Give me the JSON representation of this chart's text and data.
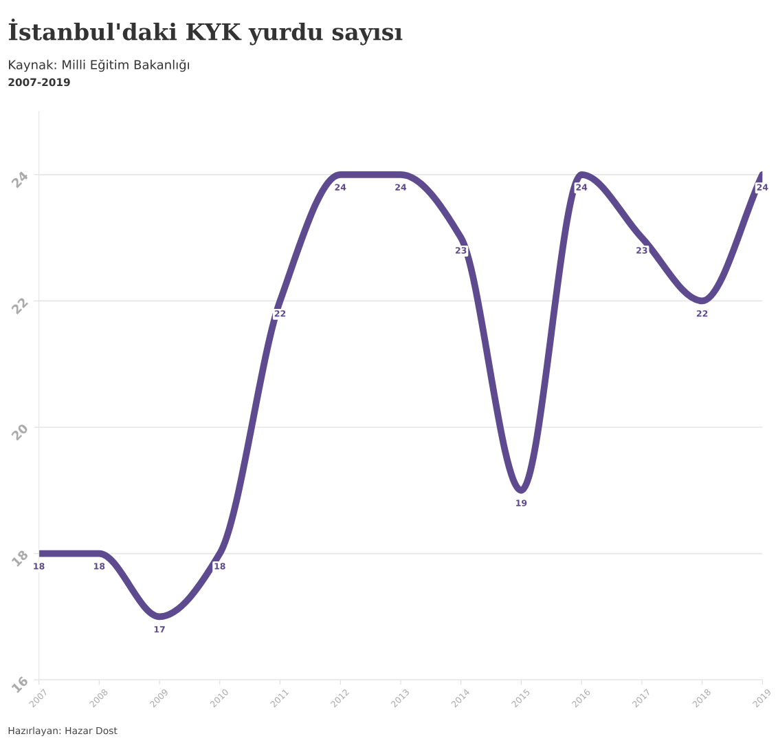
{
  "chart_data": {
    "type": "line",
    "title": "İstanbul'daki KYK yurdu sayısı",
    "subtitle": "Kaynak: Milli Eğitim Bakanlığı\n2007-2019",
    "x": [
      2007,
      2008,
      2009,
      2010,
      2011,
      2012,
      2013,
      2014,
      2015,
      2016,
      2017,
      2018,
      2019
    ],
    "series": [
      {
        "color": "#5e4b8f",
        "values": [
          18,
          18,
          17,
          18,
          22,
          24,
          24,
          23,
          19,
          24,
          23,
          22,
          24
        ]
      }
    ],
    "xlim": [
      2007,
      2019
    ],
    "xticks": [
      2007,
      2008,
      2009,
      2010,
      2011,
      2012,
      2013,
      2014,
      2015,
      2016,
      2017,
      2018,
      2019
    ],
    "ylim": [
      16,
      25
    ],
    "yticks": [
      16,
      18,
      20,
      22,
      24
    ],
    "grid": "y",
    "data_labels": true,
    "legend": false,
    "marker": "none",
    "line_style": "solid",
    "annotations": [
      "Hazırlayan: Hazar Dost"
    ]
  }
}
